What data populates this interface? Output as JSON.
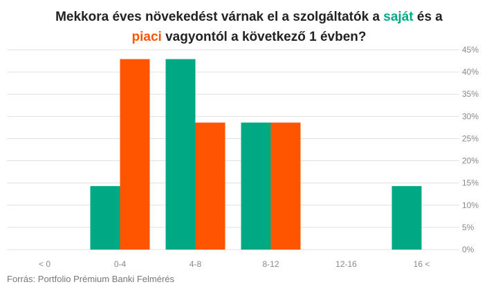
{
  "title": {
    "part1": "Mekkora éves növekedést várnak el a szolgáltatók a ",
    "highlight1": "saját",
    "part2": " és a",
    "highlight2": "piaci",
    "part3": " vagyontól a következő 1 évben?"
  },
  "source": "Forrás: Portfolio Prémium Banki Felmérés",
  "colors": {
    "own": "#00a884",
    "market": "#ff5500",
    "grid": "#e0e0e0",
    "axis_text": "#888888"
  },
  "chart_data": {
    "type": "bar",
    "categories": [
      "< 0",
      "0-4",
      "4-8",
      "8-12",
      "12-16",
      "16 <"
    ],
    "series": [
      {
        "values": [
          0,
          14.3,
          42.9,
          28.6,
          0,
          14.3
        ]
      },
      {
        "values": [
          0,
          42.9,
          28.6,
          28.6,
          0,
          0
        ]
      }
    ],
    "yticks": [
      "0%",
      "5%",
      "10%",
      "15%",
      "20%",
      "25%",
      "30%",
      "35%",
      "40%",
      "45%"
    ],
    "ylim": [
      0,
      45
    ],
    "ystep": 5,
    "grid": true,
    "y_axis_position": "right"
  }
}
